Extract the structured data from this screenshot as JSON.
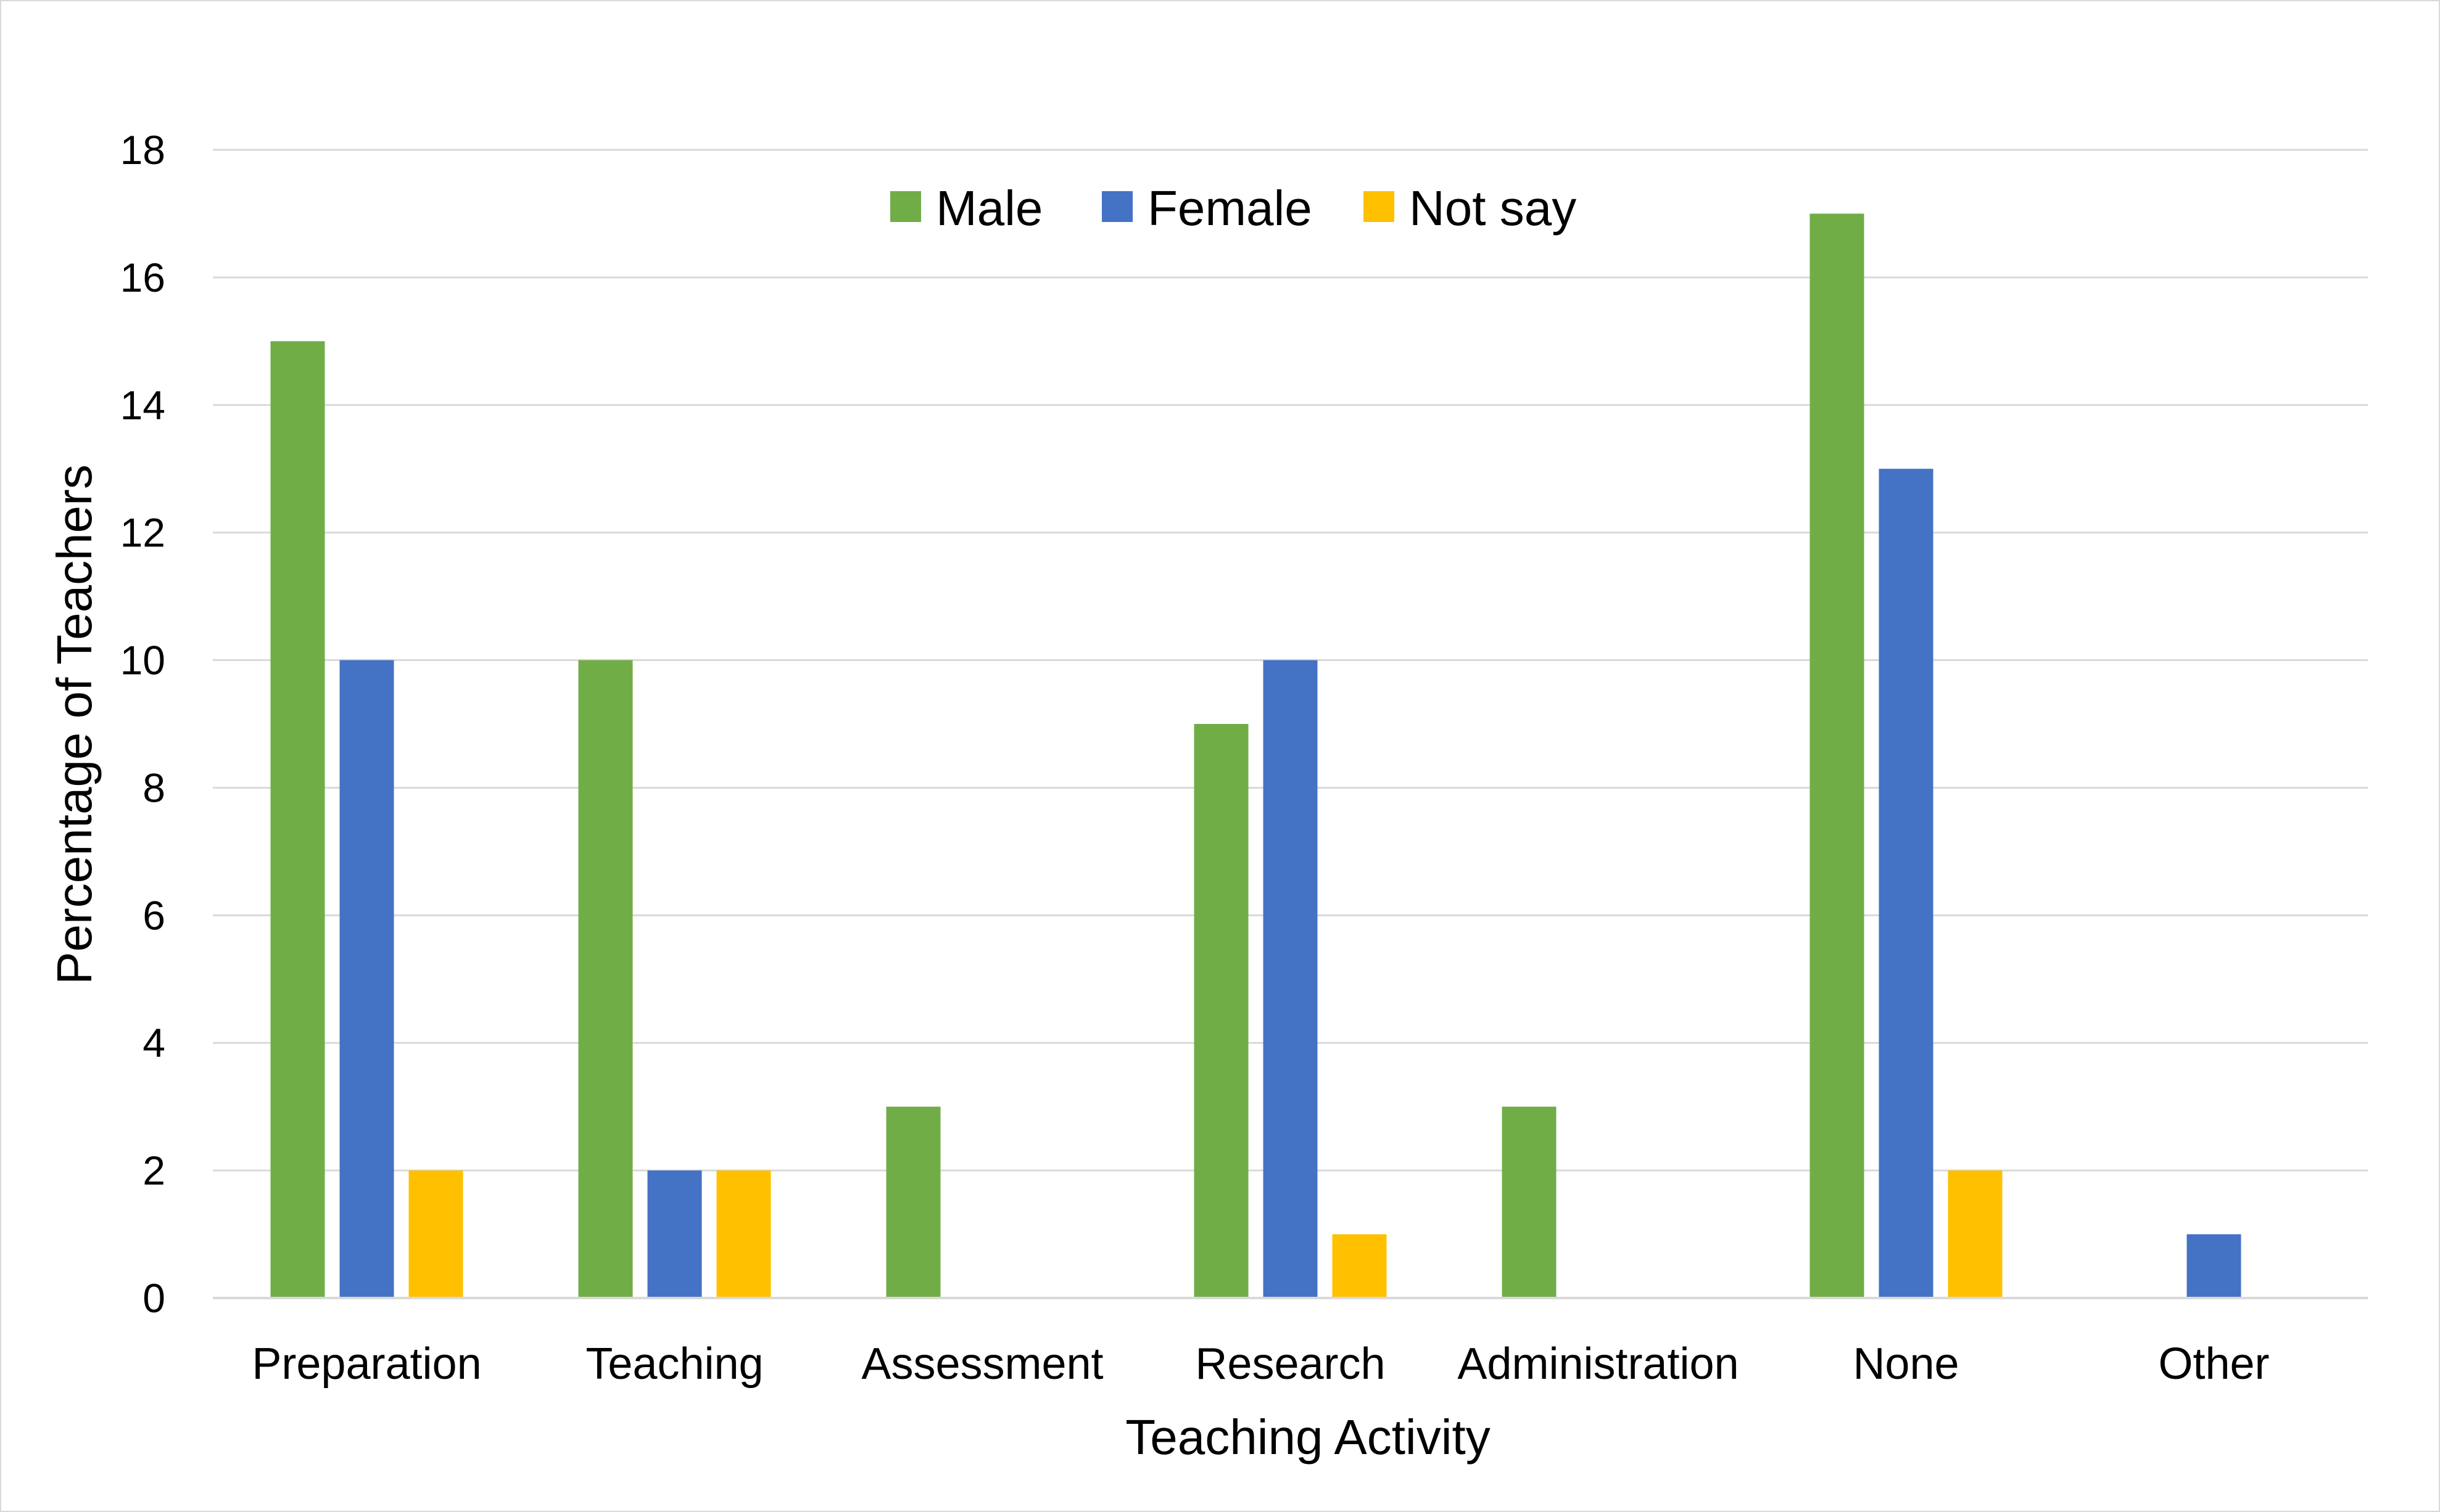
{
  "chart_data": {
    "type": "bar",
    "xlabel": "Teaching Activity",
    "ylabel": "Percentage of Teachers",
    "categories": [
      "Preparation",
      "Teaching",
      "Assessment",
      "Research",
      "Administration",
      "None",
      "Other"
    ],
    "series": [
      {
        "name": "Male",
        "color": "#70AD47",
        "values": [
          15,
          10,
          3,
          9,
          3,
          17,
          0
        ]
      },
      {
        "name": "Female",
        "color": "#4472C4",
        "values": [
          10,
          2,
          0,
          10,
          0,
          13,
          1
        ]
      },
      {
        "name": "Not say",
        "color": "#FFC000",
        "values": [
          2,
          2,
          0,
          1,
          0,
          2,
          0
        ]
      }
    ],
    "ylim": [
      0,
      18
    ],
    "yticks": [
      "0",
      "2",
      "4",
      "6",
      "8",
      "10",
      "12",
      "14",
      "16",
      "18"
    ],
    "grid": true,
    "legend_position": "top-center"
  }
}
